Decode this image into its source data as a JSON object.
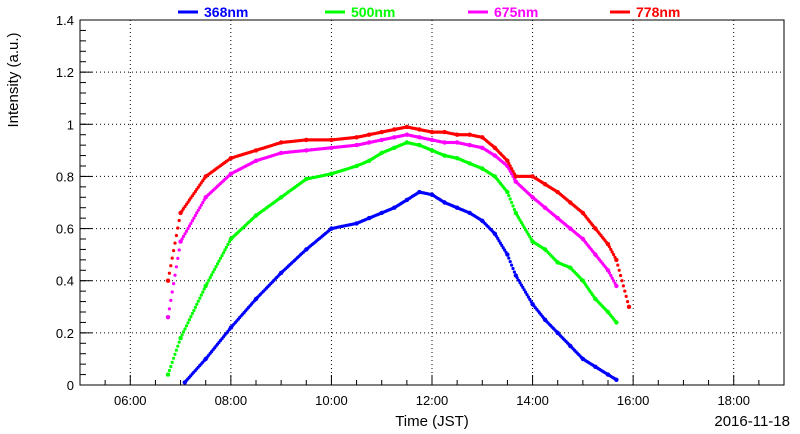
{
  "chart_data": {
    "type": "scatter",
    "xlabel": "Time (JST)",
    "ylabel": "Intensity (a.u.)",
    "date_label": "2016-11-18",
    "xlim": [
      "05:00",
      "19:00"
    ],
    "ylim": [
      0,
      1.4
    ],
    "grid": true,
    "legend_position": "top",
    "x_ticks": [
      "06:00",
      "08:00",
      "10:00",
      "12:00",
      "14:00",
      "16:00",
      "18:00"
    ],
    "y_ticks": [
      "0",
      "0.2",
      "0.4",
      "0.6",
      "0.8",
      "1",
      "1.2",
      "1.4"
    ],
    "series": [
      {
        "name": "368nm",
        "color": "#0000ff",
        "x": [
          "07:05",
          "07:30",
          "08:00",
          "08:30",
          "09:00",
          "09:30",
          "10:00",
          "10:30",
          "10:45",
          "11:00",
          "11:15",
          "11:30",
          "11:45",
          "12:00",
          "12:15",
          "12:30",
          "12:45",
          "13:00",
          "13:15",
          "13:30",
          "13:40",
          "14:00",
          "14:15",
          "14:30",
          "14:45",
          "15:00",
          "15:15",
          "15:30",
          "15:40"
        ],
        "values": [
          0.01,
          0.1,
          0.22,
          0.33,
          0.43,
          0.52,
          0.6,
          0.62,
          0.64,
          0.66,
          0.68,
          0.71,
          0.74,
          0.73,
          0.7,
          0.68,
          0.66,
          0.63,
          0.58,
          0.5,
          0.42,
          0.31,
          0.25,
          0.2,
          0.15,
          0.1,
          0.07,
          0.04,
          0.02
        ]
      },
      {
        "name": "500nm",
        "color": "#00ff00",
        "x": [
          "06:45",
          "07:00",
          "07:30",
          "08:00",
          "08:30",
          "09:00",
          "09:30",
          "10:00",
          "10:30",
          "10:45",
          "11:00",
          "11:15",
          "11:30",
          "11:45",
          "12:00",
          "12:15",
          "12:30",
          "12:45",
          "13:00",
          "13:15",
          "13:30",
          "13:40",
          "14:00",
          "14:15",
          "14:30",
          "14:45",
          "15:00",
          "15:15",
          "15:30",
          "15:40"
        ],
        "values": [
          0.04,
          0.18,
          0.38,
          0.56,
          0.65,
          0.72,
          0.79,
          0.81,
          0.84,
          0.86,
          0.89,
          0.91,
          0.93,
          0.92,
          0.9,
          0.88,
          0.87,
          0.85,
          0.83,
          0.8,
          0.74,
          0.66,
          0.55,
          0.52,
          0.47,
          0.45,
          0.4,
          0.33,
          0.28,
          0.24
        ]
      },
      {
        "name": "675nm",
        "color": "#ff00ff",
        "x": [
          "06:45",
          "07:00",
          "07:30",
          "08:00",
          "08:30",
          "09:00",
          "09:30",
          "10:00",
          "10:30",
          "10:45",
          "11:00",
          "11:15",
          "11:30",
          "11:45",
          "12:00",
          "12:15",
          "12:30",
          "12:45",
          "13:00",
          "13:15",
          "13:30",
          "13:40",
          "14:00",
          "14:15",
          "14:30",
          "14:45",
          "15:00",
          "15:15",
          "15:30",
          "15:40"
        ],
        "values": [
          0.26,
          0.55,
          0.72,
          0.81,
          0.86,
          0.89,
          0.9,
          0.91,
          0.92,
          0.93,
          0.94,
          0.95,
          0.96,
          0.95,
          0.94,
          0.93,
          0.93,
          0.92,
          0.91,
          0.88,
          0.84,
          0.78,
          0.72,
          0.68,
          0.64,
          0.6,
          0.56,
          0.5,
          0.44,
          0.38
        ]
      },
      {
        "name": "778nm",
        "color": "#ff0000",
        "x": [
          "06:45",
          "07:00",
          "07:30",
          "08:00",
          "08:30",
          "09:00",
          "09:30",
          "10:00",
          "10:30",
          "10:45",
          "11:00",
          "11:15",
          "11:30",
          "11:45",
          "12:00",
          "12:15",
          "12:30",
          "12:45",
          "13:00",
          "13:15",
          "13:30",
          "13:40",
          "14:00",
          "14:15",
          "14:30",
          "14:45",
          "15:00",
          "15:15",
          "15:30",
          "15:40",
          "15:55"
        ],
        "values": [
          0.4,
          0.66,
          0.8,
          0.87,
          0.9,
          0.93,
          0.94,
          0.94,
          0.95,
          0.96,
          0.97,
          0.98,
          0.99,
          0.98,
          0.97,
          0.97,
          0.96,
          0.96,
          0.95,
          0.91,
          0.86,
          0.8,
          0.8,
          0.77,
          0.74,
          0.7,
          0.66,
          0.6,
          0.54,
          0.48,
          0.3
        ]
      }
    ]
  }
}
